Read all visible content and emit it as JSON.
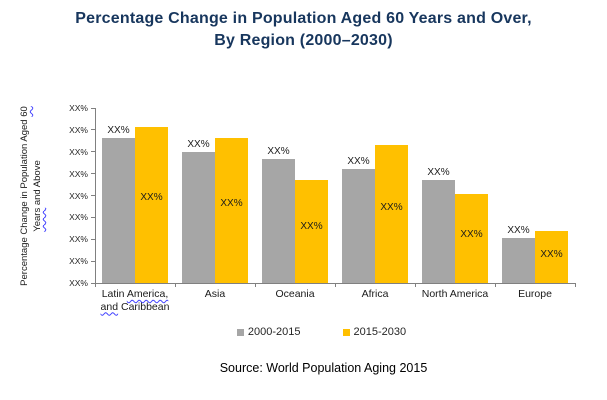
{
  "title": {
    "line1": "Percentage Change in Population Aged 60 Years and Over,",
    "line2": "By Region (2000–2030)",
    "color": "#17365D"
  },
  "y_axis": {
    "title_l1a": "Percentage Change in Population Aged ",
    "title_l1b": "60",
    "title_l2a": "Years",
    "title_l2b": " and Above",
    "tick_labels": [
      "XX%",
      "XX%",
      "XX%",
      "XX%",
      "XX%",
      "XX%",
      "XX%",
      "XX%",
      "XX%"
    ]
  },
  "x_labels": [
    {
      "lines": [
        [
          {
            "t": "Latin ",
            "w": false
          },
          {
            "t": "America,",
            "w": true
          }
        ],
        [
          {
            "t": "and",
            "w": true
          },
          {
            "t": " Caribbean",
            "w": false
          }
        ]
      ]
    },
    {
      "lines": [
        [
          {
            "t": "Asia",
            "w": false
          }
        ]
      ]
    },
    {
      "lines": [
        [
          {
            "t": "Oceania",
            "w": false
          }
        ]
      ]
    },
    {
      "lines": [
        [
          {
            "t": "Africa",
            "w": false
          }
        ]
      ]
    },
    {
      "lines": [
        [
          {
            "t": "North America",
            "w": false
          }
        ]
      ]
    },
    {
      "lines": [
        [
          {
            "t": "Europe",
            "w": false
          }
        ]
      ]
    }
  ],
  "legend": {
    "items": [
      {
        "label": "2000-2015",
        "color": "#A6A6A6"
      },
      {
        "label": "2015-2030",
        "color": "#FFC000"
      }
    ]
  },
  "source": "Source: World Population Aging 2015",
  "chart_data": {
    "type": "bar",
    "title": "Percentage Change in Population Aged 60 Years and Over, By Region (2000–2030)",
    "categories": [
      "Latin America, and Caribbean",
      "Asia",
      "Oceania",
      "Africa",
      "North America",
      "Europe"
    ],
    "series": [
      {
        "name": "2000-2015",
        "color": "#A6A6A6",
        "values_pct_of_plot_height": [
          83,
          75,
          71,
          65,
          59,
          26
        ],
        "data_labels": [
          "XX%",
          "XX%",
          "XX%",
          "XX%",
          "XX%",
          "XX%"
        ],
        "label_position": "above"
      },
      {
        "name": "2015-2030",
        "color": "#FFC000",
        "values_pct_of_plot_height": [
          89,
          83,
          59,
          79,
          51,
          30
        ],
        "data_labels": [
          "XX%",
          "XX%",
          "XX%",
          "XX%",
          "XX%",
          "XX%"
        ],
        "label_position": "inside"
      }
    ],
    "ylabel": "Percentage Change in Population Aged 60 Years and Above",
    "xlabel": "",
    "y_tick_labels": [
      "XX%",
      "XX%",
      "XX%",
      "XX%",
      "XX%",
      "XX%",
      "XX%",
      "XX%",
      "XX%"
    ],
    "value_labels_are_placeholders": true,
    "grid": false,
    "legend_position": "bottom"
  }
}
